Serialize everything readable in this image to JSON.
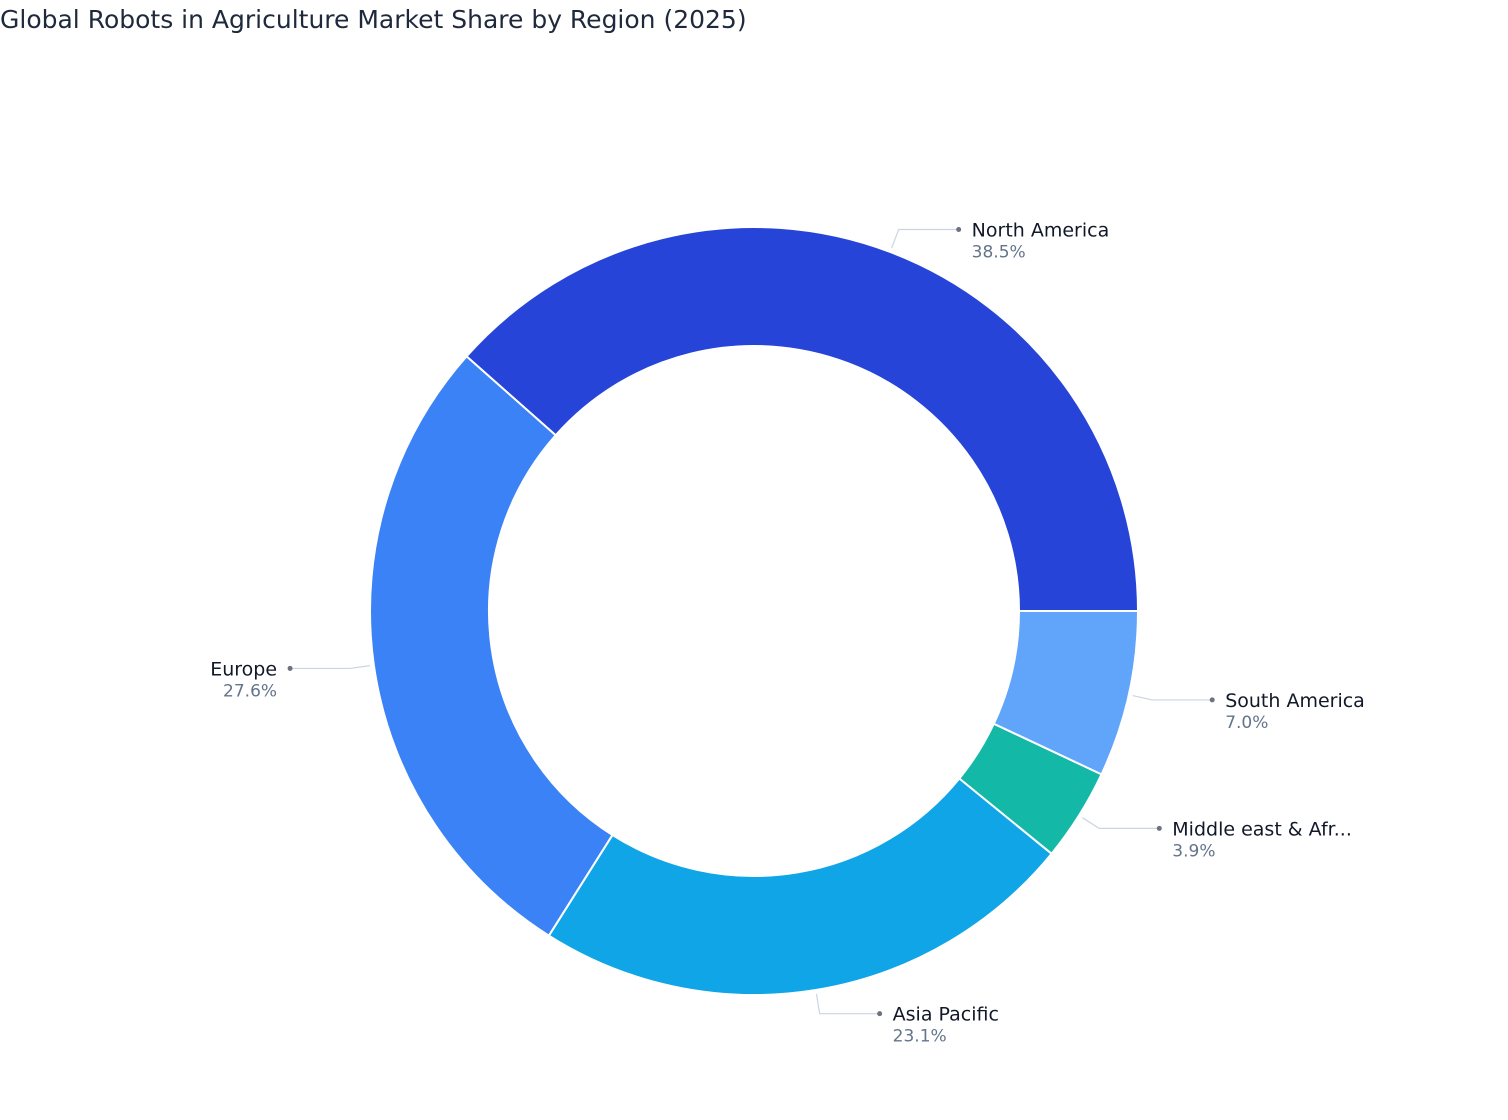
{
  "chart_data": {
    "type": "donut",
    "title": "Global Robots in Agriculture Market Share by Region (2025)",
    "categories": [
      "North America",
      "Europe",
      "Asia Pacific",
      "Middle east & Afr...",
      "South America"
    ],
    "values": [
      38.5,
      27.6,
      23.1,
      3.9,
      7.0
    ],
    "value_labels": [
      "38.5%",
      "27.6%",
      "23.1%",
      "3.9%",
      "7.0%"
    ],
    "colors": [
      "#2744d9",
      "#3b82f6",
      "#10a5e6",
      "#14b8a6",
      "#60a5fa"
    ]
  }
}
